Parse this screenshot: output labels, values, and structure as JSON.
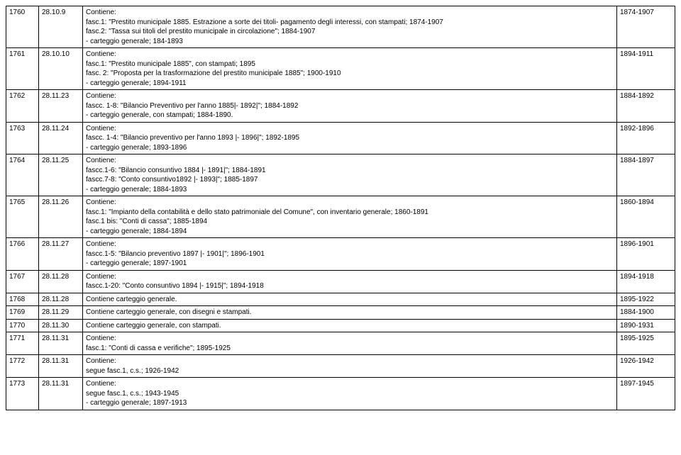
{
  "rows": [
    {
      "n": "1760",
      "code": "28.10.9",
      "lines": [
        "Contiene:",
        "fasc.1: \"Prestito municipale 1885. Estrazione a sorte dei titoli- pagamento degli interessi, con stampati; 1874-1907",
        "fasc.2: \"Tassa sui titoli del prestito municipale in circolazione\"; 1884-1907",
        "- carteggio generale; 184-1893"
      ],
      "date": "1874-1907"
    },
    {
      "n": "1761",
      "code": "28.10.10",
      "lines": [
        "Contiene:",
        "fasc.1: \"Prestito municipale 1885\", con stampati; 1895",
        "fasc. 2: \"Proposta per la trasformazione del prestito municipale 1885\"; 1900-1910",
        "- carteggio generale; 1894-1911"
      ],
      "date": "1894-1911"
    },
    {
      "n": "1762",
      "code": "28.11.23",
      "lines": [
        "Contiene:",
        "fascc. 1-8: \"Bilancio Preventivo per l'anno 1885|- 1892|\"; 1884-1892",
        "- carteggio generale, con stampati; 1884-1890."
      ],
      "date": "1884-1892"
    },
    {
      "n": "1763",
      "code": "28.11.24",
      "lines": [
        "Contiene:",
        "fascc. 1-4: \"Bilancio preventivo per l'anno 1893 |- 1896|\"; 1892-1895",
        "- carteggio generale; 1893-1896"
      ],
      "date": "1892-1896"
    },
    {
      "n": "1764",
      "code": "28.11.25",
      "lines": [
        "Contiene:",
        "fascc.1-6: \"Bilancio consuntivo 1884 |- 1891|\"; 1884-1891",
        "fascc.7-8: \"Conto consuntivo1892 |- 1893|\"; 1885-1897",
        "- carteggio generale; 1884-1893"
      ],
      "date": "1884-1897"
    },
    {
      "n": "1765",
      "code": "28.11.26",
      "lines": [
        "Contiene:",
        "fasc.1: \"Impianto della contabilità e dello stato patrimoniale del Comune\", con inventario generale; 1860-1891",
        "fasc.1 bis: \"Conti di cassa\"; 1885-1894",
        "- carteggio generale; 1884-1894"
      ],
      "date": "1860-1894"
    },
    {
      "n": "1766",
      "code": "28.11.27",
      "lines": [
        "Contiene:",
        "fascc.1-5: \"Bilancio preventivo 1897 |- 1901|\"; 1896-1901",
        "- carteggio generale; 1897-1901"
      ],
      "date": "1896-1901"
    },
    {
      "n": "1767",
      "code": "28.11.28",
      "lines": [
        "Contiene:",
        "fascc.1-20: \"Conto consuntivo 1894 |- 1915|\"; 1894-1918"
      ],
      "date": "1894-1918"
    },
    {
      "n": "1768",
      "code": "28.11.28",
      "lines": [
        "Contiene carteggio generale."
      ],
      "date": "1895-1922"
    },
    {
      "n": "1769",
      "code": "28.11.29",
      "lines": [
        "Contiene carteggio generale, con disegni e stampati."
      ],
      "date": "1884-1900"
    },
    {
      "n": "1770",
      "code": "28.11.30",
      "lines": [
        "Contiene carteggio generale, con stampati."
      ],
      "date": "1890-1931"
    },
    {
      "n": "1771",
      "code": "28.11.31",
      "lines": [
        "Contiene:",
        "fasc.1: \"Conti di cassa e verifiche\"; 1895-1925"
      ],
      "date": "1895-1925"
    },
    {
      "n": "1772",
      "code": "28.11.31",
      "lines": [
        "Contiene:",
        "segue fasc.1, c.s.; 1926-1942"
      ],
      "date": "1926-1942"
    },
    {
      "n": "1773",
      "code": "28.11.31",
      "lines": [
        "Contiene:",
        "segue fasc.1, c.s.; 1943-1945",
        "- carteggio generale; 1897-1913"
      ],
      "date": "1897-1945"
    }
  ]
}
